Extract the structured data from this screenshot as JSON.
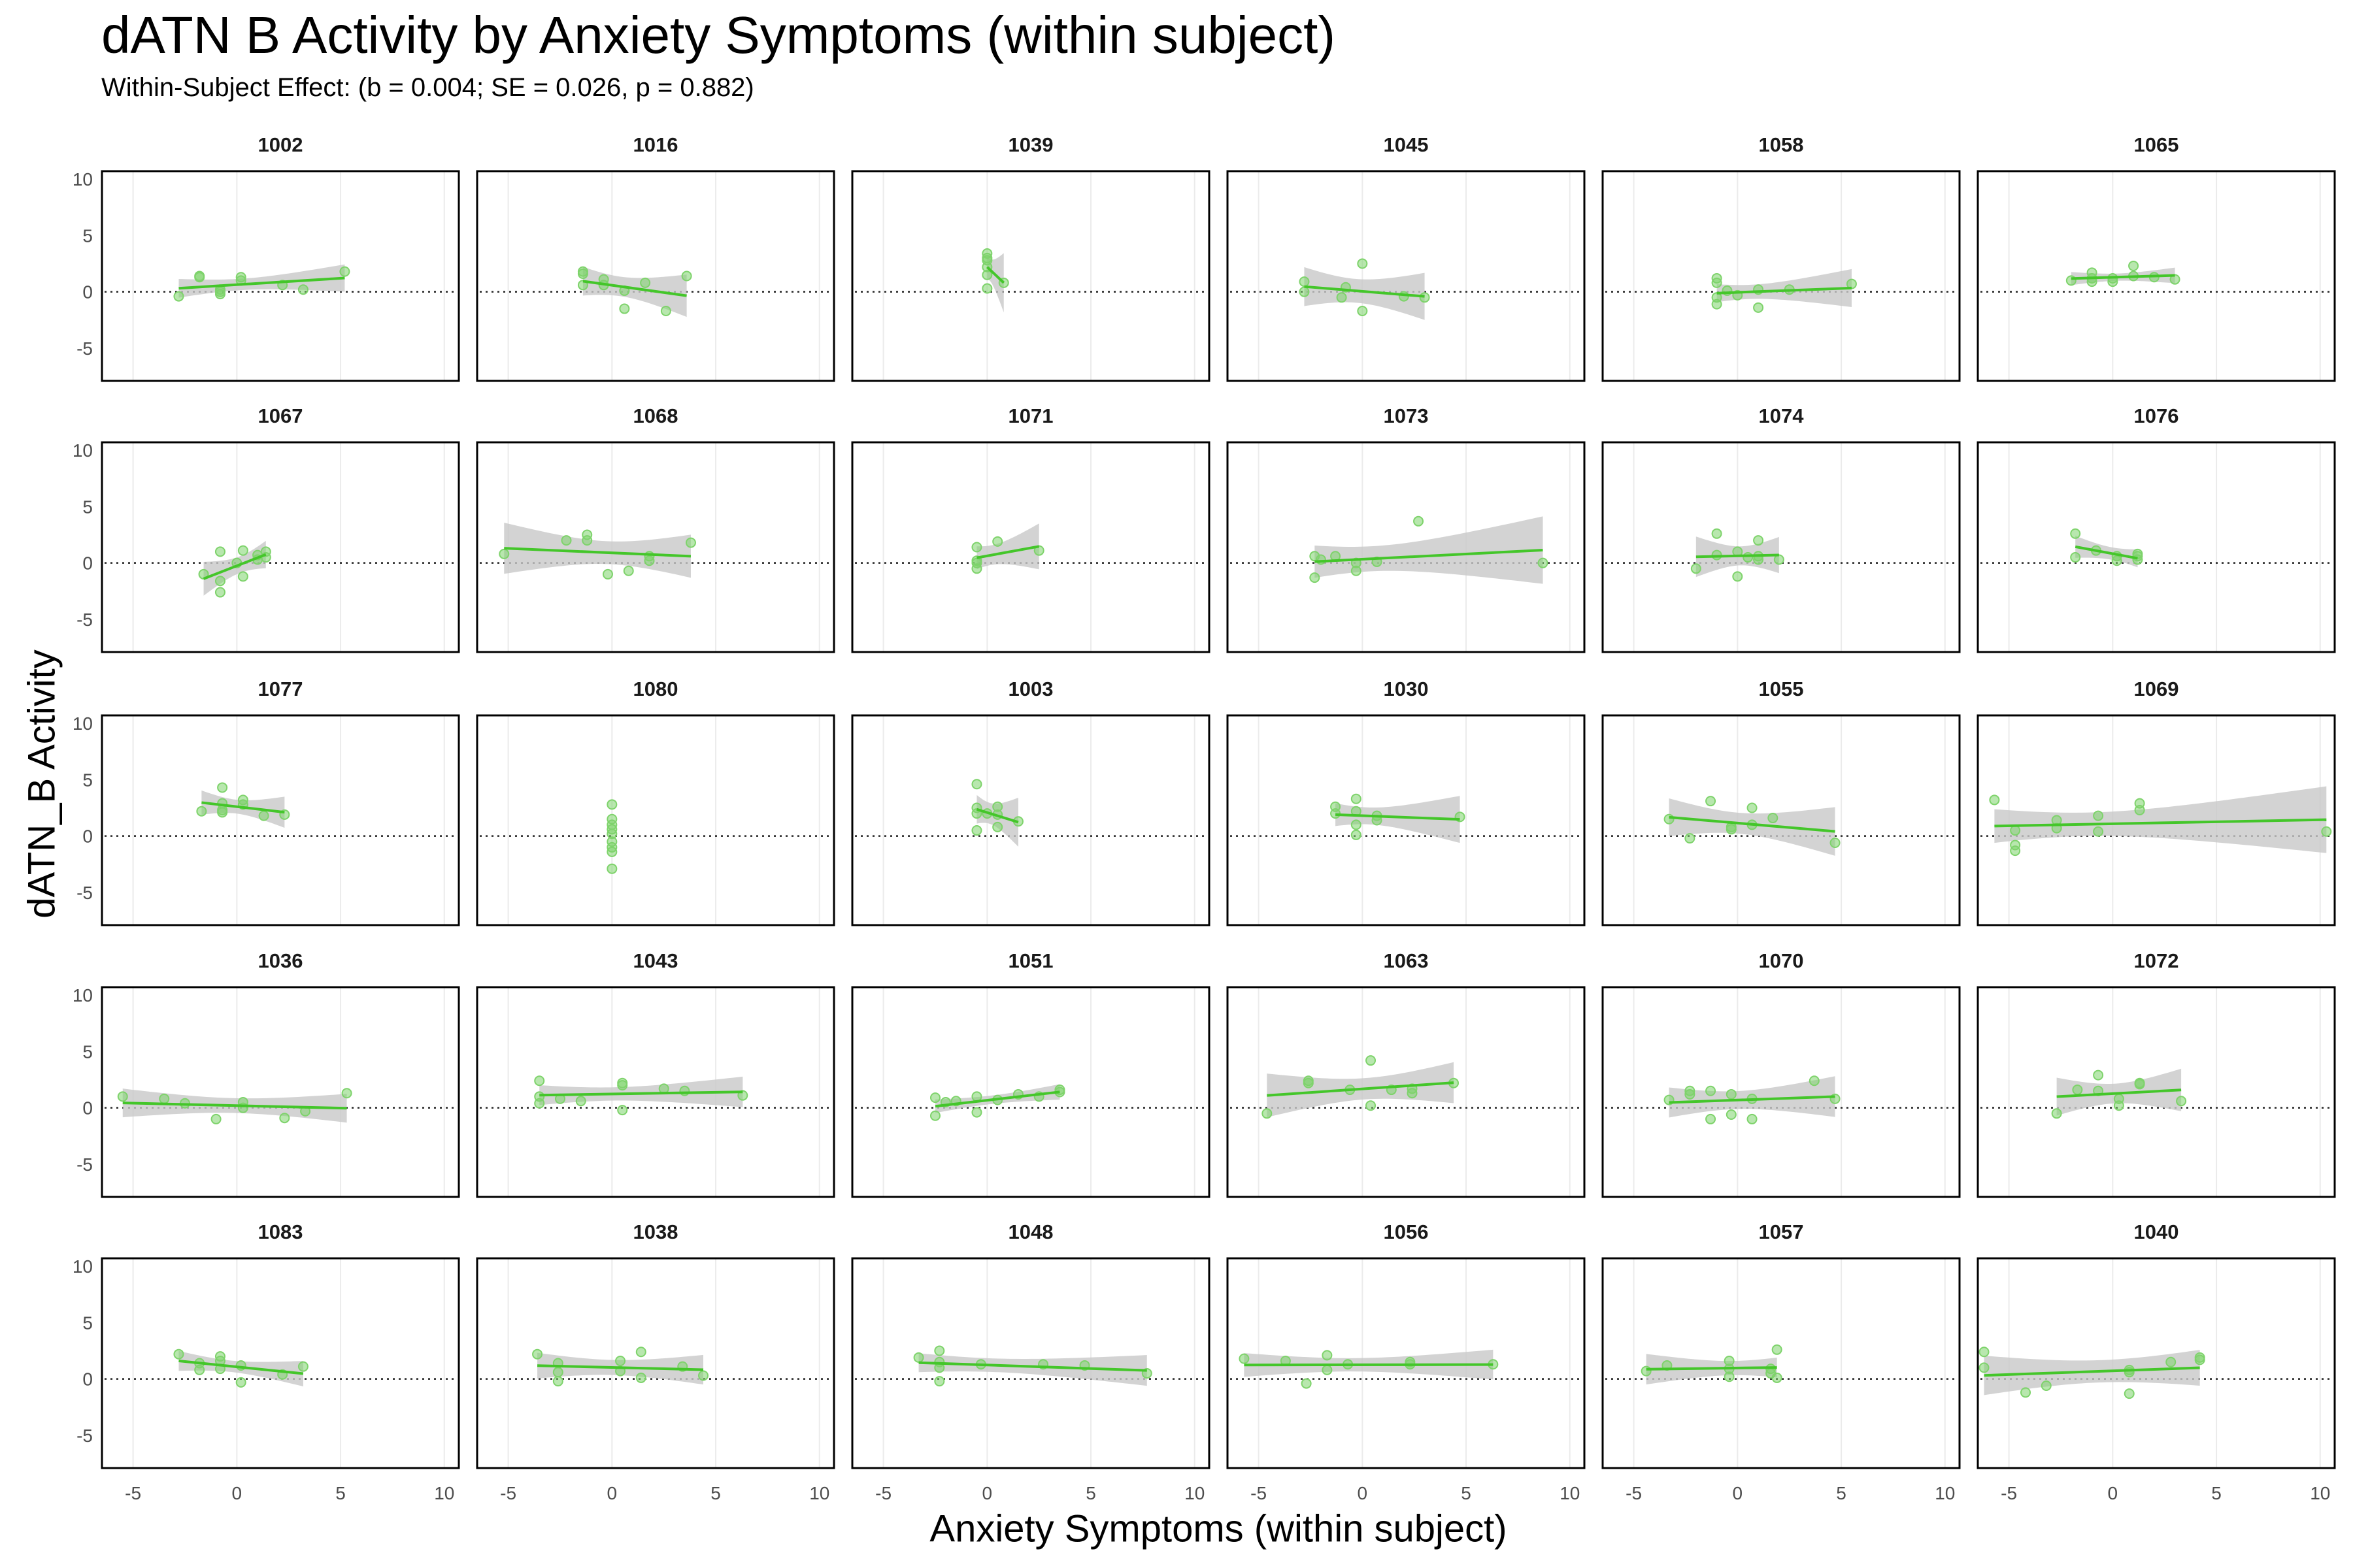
{
  "chart_data": {
    "type": "scatter",
    "title": "dATN B Activity by Anxiety Symptoms (within subject)",
    "subtitle": "Within-Subject Effect: (b = 0.004; SE = 0.026, p = 0.882)",
    "xlabel": "Anxiety Symptoms (within subject)",
    "ylabel": "dATN_B Activity",
    "xlim": [
      -6.5,
      10.7
    ],
    "ylim": [
      -7.9,
      10.7
    ],
    "xticks": [
      -5,
      0,
      5,
      10
    ],
    "yticks": [
      10,
      5,
      0,
      -5
    ],
    "grid": true,
    "reference_line_y": 0,
    "point_color": "#7ed36b",
    "line_color": "#44c62a",
    "ribbon_color": "#c8c8c8",
    "panels": [
      {
        "id": "1002",
        "points": [
          [
            -2.8,
            -0.4
          ],
          [
            -1.8,
            1.4
          ],
          [
            -1.8,
            1.3
          ],
          [
            -0.8,
            0
          ],
          [
            -0.8,
            0.2
          ],
          [
            -0.8,
            -0.2
          ],
          [
            0.2,
            1.0
          ],
          [
            0.2,
            1.3
          ],
          [
            2.2,
            0.6
          ],
          [
            3.2,
            0.2
          ],
          [
            5.2,
            1.8
          ]
        ]
      },
      {
        "id": "1016",
        "points": [
          [
            -1.4,
            1.8
          ],
          [
            -1.4,
            1.6
          ],
          [
            -1.4,
            0.6
          ],
          [
            -0.4,
            1.1
          ],
          [
            -0.4,
            0.6
          ],
          [
            0.6,
            0.1
          ],
          [
            0.6,
            -1.5
          ],
          [
            1.6,
            0.8
          ],
          [
            2.6,
            -1.7
          ],
          [
            3.6,
            1.4
          ]
        ]
      },
      {
        "id": "1039",
        "points": [
          [
            0,
            3.4
          ],
          [
            0,
            3.0
          ],
          [
            0,
            2.8
          ],
          [
            0,
            2.2
          ],
          [
            0,
            1.5
          ],
          [
            0,
            0.3
          ],
          [
            0.8,
            0.8
          ]
        ]
      },
      {
        "id": "1045",
        "points": [
          [
            -2.8,
            0.9
          ],
          [
            -2.8,
            0
          ],
          [
            -0.8,
            0.4
          ],
          [
            -1,
            -0.5
          ],
          [
            0,
            2.5
          ],
          [
            0,
            -1.7
          ],
          [
            2,
            -0.4
          ],
          [
            3,
            -0.5
          ]
        ]
      },
      {
        "id": "1058",
        "points": [
          [
            -1,
            1.2
          ],
          [
            -1,
            0.8
          ],
          [
            -1,
            -0.5
          ],
          [
            -1,
            -1.1
          ],
          [
            0,
            -0.3
          ],
          [
            1,
            0.2
          ],
          [
            1,
            -1.4
          ],
          [
            2.5,
            0.2
          ],
          [
            5.5,
            0.7
          ],
          [
            -0.5,
            0.1
          ]
        ]
      },
      {
        "id": "1065",
        "points": [
          [
            -2,
            1.0
          ],
          [
            -1,
            1.7
          ],
          [
            -1,
            1.2
          ],
          [
            -1,
            0.9
          ],
          [
            0,
            1.2
          ],
          [
            0,
            0.9
          ],
          [
            1,
            2.3
          ],
          [
            1,
            1.4
          ],
          [
            3,
            1.1
          ],
          [
            2,
            1.3
          ]
        ]
      },
      {
        "id": "1067",
        "points": [
          [
            -1.6,
            -1.0
          ],
          [
            -0.8,
            -1.6
          ],
          [
            -0.8,
            -2.6
          ],
          [
            -0.8,
            1.0
          ],
          [
            0,
            0
          ],
          [
            0.3,
            1.1
          ],
          [
            0.3,
            -1.2
          ],
          [
            1,
            0.3
          ],
          [
            1,
            0.7
          ],
          [
            1.4,
            1.0
          ],
          [
            1.4,
            0.5
          ]
        ]
      },
      {
        "id": "1068",
        "points": [
          [
            -5.2,
            0.8
          ],
          [
            -2.2,
            2.0
          ],
          [
            -1.2,
            2.5
          ],
          [
            -1.2,
            2.0
          ],
          [
            -0.2,
            -1.0
          ],
          [
            0.8,
            -0.7
          ],
          [
            1.8,
            0.6
          ],
          [
            1.8,
            0.2
          ],
          [
            3.8,
            1.8
          ]
        ]
      },
      {
        "id": "1071",
        "points": [
          [
            -0.5,
            1.4
          ],
          [
            -0.5,
            0
          ],
          [
            -0.5,
            -0.5
          ],
          [
            -0.5,
            0.2
          ],
          [
            0.5,
            1.9
          ],
          [
            2.5,
            1.1
          ]
        ]
      },
      {
        "id": "1073",
        "points": [
          [
            -2.3,
            -1.3
          ],
          [
            -2.3,
            0.6
          ],
          [
            -1.3,
            0.6
          ],
          [
            -0.3,
            0
          ],
          [
            -0.3,
            -0.7
          ],
          [
            0.7,
            0.1
          ],
          [
            2.7,
            3.7
          ],
          [
            8.7,
            0
          ],
          [
            -2,
            0.3
          ]
        ]
      },
      {
        "id": "1074",
        "points": [
          [
            -2,
            -0.5
          ],
          [
            -1,
            2.6
          ],
          [
            0,
            1
          ],
          [
            0,
            -1.2
          ],
          [
            0.5,
            0.5
          ],
          [
            1,
            2
          ],
          [
            1,
            0.6
          ],
          [
            1,
            0.3
          ],
          [
            2,
            0.3
          ],
          [
            -1,
            0.7
          ]
        ]
      },
      {
        "id": "1076",
        "points": [
          [
            -1.8,
            2.6
          ],
          [
            -1.8,
            0.5
          ],
          [
            -0.8,
            1.1
          ],
          [
            0.2,
            0.6
          ],
          [
            0.2,
            0.2
          ],
          [
            1.2,
            0.8
          ],
          [
            1.2,
            0.3
          ],
          [
            1.2,
            0.6
          ]
        ]
      },
      {
        "id": "1077",
        "points": [
          [
            -1.7,
            2.2
          ],
          [
            -0.7,
            2.3
          ],
          [
            -0.7,
            2.1
          ],
          [
            -0.7,
            2.9
          ],
          [
            -0.7,
            4.3
          ],
          [
            0.3,
            3.2
          ],
          [
            0.3,
            2.8
          ],
          [
            1.3,
            1.8
          ],
          [
            2.3,
            1.9
          ]
        ]
      },
      {
        "id": "1080",
        "points": [
          [
            0,
            2.8
          ],
          [
            0,
            1.5
          ],
          [
            0,
            1.0
          ],
          [
            0,
            0.6
          ],
          [
            0,
            0.2
          ],
          [
            0,
            -0.5
          ],
          [
            0,
            -1.0
          ],
          [
            0,
            -1.4
          ],
          [
            0,
            -2.9
          ]
        ]
      },
      {
        "id": "1003",
        "points": [
          [
            -0.5,
            4.6
          ],
          [
            -0.5,
            2.5
          ],
          [
            -0.5,
            2.0
          ],
          [
            -0.5,
            0.5
          ],
          [
            0.5,
            2.6
          ],
          [
            0.5,
            1.9
          ],
          [
            0.5,
            0.8
          ],
          [
            1.5,
            1.3
          ],
          [
            0,
            2.0
          ]
        ]
      },
      {
        "id": "1030",
        "points": [
          [
            -1.3,
            2.6
          ],
          [
            -1.3,
            2.0
          ],
          [
            -0.3,
            3.3
          ],
          [
            -0.3,
            2.2
          ],
          [
            -0.3,
            1.0
          ],
          [
            -0.3,
            0.1
          ],
          [
            0.7,
            1.8
          ],
          [
            0.7,
            1.4
          ],
          [
            4.7,
            1.7
          ]
        ]
      },
      {
        "id": "1055",
        "points": [
          [
            -3.3,
            1.5
          ],
          [
            -2.3,
            -0.2
          ],
          [
            -1.3,
            3.1
          ],
          [
            -0.3,
            0.8
          ],
          [
            -0.3,
            0.6
          ],
          [
            0.7,
            2.5
          ],
          [
            0.7,
            1.0
          ],
          [
            1.7,
            1.6
          ],
          [
            4.7,
            -0.6
          ]
        ]
      },
      {
        "id": "1069",
        "points": [
          [
            -5.7,
            3.2
          ],
          [
            -4.7,
            0.5
          ],
          [
            -4.7,
            -0.8
          ],
          [
            -4.7,
            -1.3
          ],
          [
            -2.7,
            1.4
          ],
          [
            -2.7,
            0.7
          ],
          [
            -0.7,
            1.8
          ],
          [
            -0.7,
            0.4
          ],
          [
            1.3,
            2.9
          ],
          [
            1.3,
            2.3
          ],
          [
            10.3,
            0.4
          ]
        ]
      },
      {
        "id": "1036",
        "points": [
          [
            -5.5,
            1.0
          ],
          [
            -3.5,
            0.8
          ],
          [
            -2.5,
            0.4
          ],
          [
            -1,
            -1.0
          ],
          [
            0.3,
            0.5
          ],
          [
            0.3,
            0
          ],
          [
            2.3,
            -0.9
          ],
          [
            3.3,
            -0.3
          ],
          [
            5.3,
            1.3
          ]
        ]
      },
      {
        "id": "1043",
        "points": [
          [
            -3.5,
            2.4
          ],
          [
            -3.5,
            1.0
          ],
          [
            -3.5,
            0.4
          ],
          [
            -2.5,
            0.8
          ],
          [
            -1.5,
            0.6
          ],
          [
            0.5,
            2.2
          ],
          [
            0.5,
            2.0
          ],
          [
            0.5,
            -0.2
          ],
          [
            2.5,
            1.7
          ],
          [
            3.5,
            1.5
          ],
          [
            6.3,
            1.1
          ]
        ]
      },
      {
        "id": "1051",
        "points": [
          [
            -2.5,
            -0.7
          ],
          [
            -2.5,
            0.9
          ],
          [
            -1.5,
            0.6
          ],
          [
            -0.5,
            1.0
          ],
          [
            -0.5,
            -0.4
          ],
          [
            0.5,
            0.7
          ],
          [
            1.5,
            1.2
          ],
          [
            2.5,
            1.0
          ],
          [
            3.5,
            1.4
          ],
          [
            3.5,
            1.6
          ],
          [
            -2,
            0.5
          ]
        ]
      },
      {
        "id": "1063",
        "points": [
          [
            -4.6,
            -0.5
          ],
          [
            -2.6,
            2.4
          ],
          [
            -2.6,
            2.2
          ],
          [
            -0.6,
            1.6
          ],
          [
            0.4,
            4.2
          ],
          [
            0.4,
            0.2
          ],
          [
            1.4,
            1.6
          ],
          [
            2.4,
            1.3
          ],
          [
            2.4,
            1.7
          ],
          [
            4.4,
            2.2
          ]
        ]
      },
      {
        "id": "1070",
        "points": [
          [
            -3.3,
            0.7
          ],
          [
            -2.3,
            1.5
          ],
          [
            -2.3,
            1.2
          ],
          [
            -1.3,
            1.5
          ],
          [
            -1.3,
            -1.0
          ],
          [
            -0.3,
            1.2
          ],
          [
            -0.3,
            -0.6
          ],
          [
            0.7,
            0.8
          ],
          [
            0.7,
            -1.0
          ],
          [
            3.7,
            2.4
          ],
          [
            4.7,
            0.8
          ]
        ]
      },
      {
        "id": "1072",
        "points": [
          [
            -2.7,
            -0.5
          ],
          [
            -1.7,
            1.6
          ],
          [
            -0.7,
            2.9
          ],
          [
            -0.7,
            1.5
          ],
          [
            0.3,
            0.8
          ],
          [
            0.3,
            0.2
          ],
          [
            1.3,
            2.2
          ],
          [
            1.3,
            2.1
          ],
          [
            3.3,
            0.6
          ]
        ]
      },
      {
        "id": "1083",
        "points": [
          [
            -2.8,
            2.2
          ],
          [
            -1.8,
            1.4
          ],
          [
            -0.8,
            1.6
          ],
          [
            -0.8,
            0.9
          ],
          [
            -0.8,
            2.0
          ],
          [
            0.2,
            1.2
          ],
          [
            0.2,
            -0.3
          ],
          [
            2.2,
            0.4
          ],
          [
            3.2,
            1.1
          ],
          [
            -1.8,
            0.8
          ]
        ]
      },
      {
        "id": "1038",
        "points": [
          [
            -3.6,
            2.2
          ],
          [
            -2.6,
            1.4
          ],
          [
            -2.6,
            0.6
          ],
          [
            -2.6,
            -0.2
          ],
          [
            0.4,
            1.6
          ],
          [
            0.4,
            0.7
          ],
          [
            1.4,
            2.4
          ],
          [
            1.4,
            0.1
          ],
          [
            3.4,
            1.1
          ],
          [
            4.4,
            0.3
          ]
        ]
      },
      {
        "id": "1048",
        "points": [
          [
            -3.3,
            1.9
          ],
          [
            -2.3,
            1.5
          ],
          [
            -2.3,
            2.5
          ],
          [
            -2.3,
            1.0
          ],
          [
            -2.3,
            -0.2
          ],
          [
            -0.3,
            1.3
          ],
          [
            2.7,
            1.3
          ],
          [
            4.7,
            1.2
          ],
          [
            7.7,
            0.5
          ]
        ]
      },
      {
        "id": "1056",
        "points": [
          [
            -5.7,
            1.8
          ],
          [
            -3.7,
            1.6
          ],
          [
            -2.7,
            -0.4
          ],
          [
            -1.7,
            2.1
          ],
          [
            -1.7,
            0.8
          ],
          [
            -0.7,
            1.3
          ],
          [
            2.3,
            1.5
          ],
          [
            2.3,
            1.3
          ],
          [
            6.3,
            1.3
          ]
        ]
      },
      {
        "id": "1057",
        "points": [
          [
            -4.4,
            0.7
          ],
          [
            -3.4,
            1.2
          ],
          [
            -0.4,
            0.9
          ],
          [
            -0.4,
            1.6
          ],
          [
            -0.4,
            0.2
          ],
          [
            1.6,
            0.9
          ],
          [
            1.6,
            0.5
          ],
          [
            1.9,
            2.6
          ],
          [
            1.9,
            0.1
          ]
        ]
      },
      {
        "id": "1040",
        "points": [
          [
            -6.2,
            2.4
          ],
          [
            -6.2,
            1.0
          ],
          [
            -4.2,
            -1.2
          ],
          [
            -3.2,
            -0.6
          ],
          [
            0.8,
            0.6
          ],
          [
            0.8,
            -1.3
          ],
          [
            0.8,
            0.8
          ],
          [
            2.8,
            1.5
          ],
          [
            4.2,
            1.9
          ],
          [
            4.2,
            1.7
          ]
        ]
      }
    ]
  }
}
